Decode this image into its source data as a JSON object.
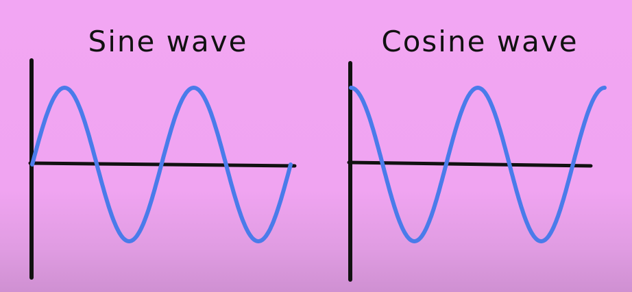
{
  "chart_data": [
    {
      "type": "line",
      "title": "Sine wave",
      "function": "sin",
      "x_range": [
        0,
        12.566
      ],
      "periods": 2,
      "amplitude": 1,
      "colors": {
        "curve": "#4a7bea",
        "axes": "#111111"
      },
      "grid": false
    },
    {
      "type": "line",
      "title": "Cosine wave",
      "function": "cos",
      "x_range": [
        0,
        12.566
      ],
      "periods": 2,
      "amplitude": 1,
      "colors": {
        "curve": "#4a7bea",
        "axes": "#111111"
      },
      "grid": false
    }
  ]
}
